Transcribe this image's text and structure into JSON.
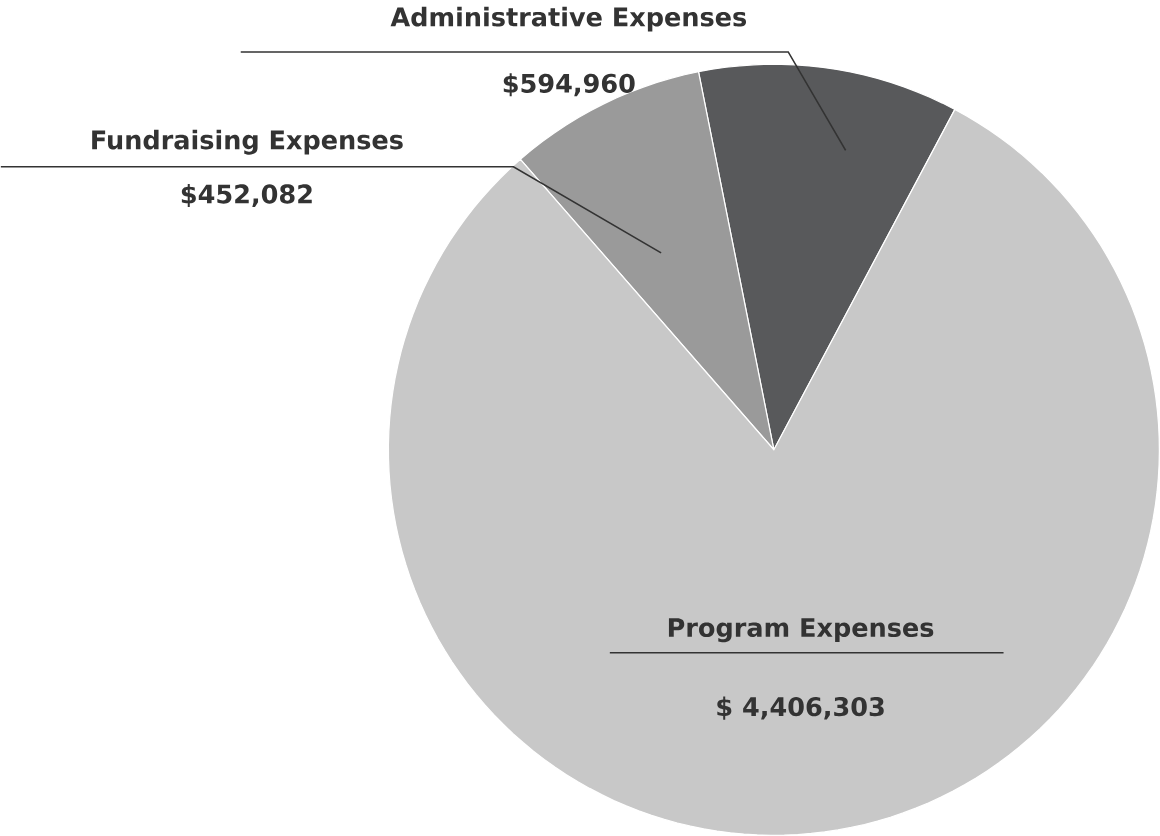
{
  "chart_data": {
    "type": "pie",
    "categories": [
      "Administrative Expenses",
      "Fundraising Expenses",
      "Program Expenses"
    ],
    "values": [
      594960,
      452082,
      4406303
    ],
    "value_labels": [
      "$594,960",
      "$452,082",
      "$ 4,406,303"
    ],
    "colors": [
      "#58595b",
      "#9a9a9a",
      "#c8c8c8"
    ]
  }
}
